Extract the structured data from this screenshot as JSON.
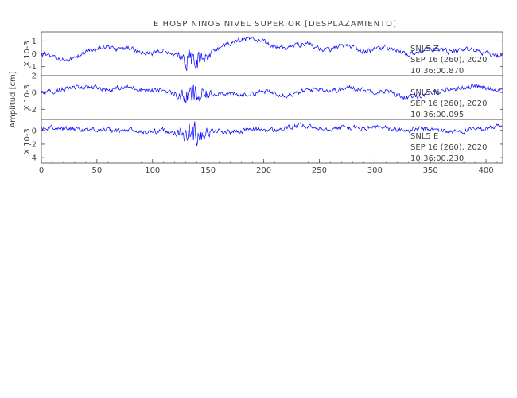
{
  "chart_data": {
    "type": "line",
    "title": "E HOSP NINOS NIVEL SUPERIOR [DESPLAZAMIENTO]",
    "ylabel": "Amplitud [cm]",
    "xlim": [
      0,
      415
    ],
    "x_ticks": [
      "0",
      "50",
      "100",
      "150",
      "200",
      "250",
      "300",
      "350",
      "400"
    ],
    "x_tick_values": [
      0,
      50,
      100,
      150,
      200,
      250,
      300,
      350,
      400
    ],
    "line_color": "#0000ff",
    "axis_color": "#444444",
    "panels": [
      {
        "scale_label": "X 10-3",
        "ylim": [
          -1.7,
          1.7
        ],
        "y_ticks": [
          "1",
          "0",
          "-1"
        ],
        "y_tick_values": [
          1,
          0,
          -1
        ],
        "label_lines": [
          "SNL5   Z",
          "SEP 16 (260), 2020",
          "10:36:00.870"
        ],
        "trace": [
          [
            0,
            0
          ],
          [
            10,
            -0.2
          ],
          [
            20,
            -0.5
          ],
          [
            30,
            -0.4
          ],
          [
            40,
            0.2
          ],
          [
            50,
            0.4
          ],
          [
            60,
            0.6
          ],
          [
            70,
            0.3
          ],
          [
            80,
            0.5
          ],
          [
            90,
            0.1
          ],
          [
            100,
            0
          ],
          [
            110,
            0.2
          ],
          [
            120,
            -0.2
          ],
          [
            130,
            -0.5
          ],
          [
            140,
            -0.3
          ],
          [
            150,
            -0.1
          ],
          [
            160,
            0.5
          ],
          [
            170,
            0.8
          ],
          [
            180,
            1.1
          ],
          [
            190,
            1.2
          ],
          [
            200,
            0.9
          ],
          [
            210,
            0.6
          ],
          [
            220,
            0.4
          ],
          [
            230,
            0.7
          ],
          [
            240,
            0.8
          ],
          [
            250,
            0.4
          ],
          [
            260,
            0.3
          ],
          [
            270,
            0.6
          ],
          [
            280,
            0.5
          ],
          [
            290,
            0.2
          ],
          [
            300,
            0.3
          ],
          [
            310,
            0.5
          ],
          [
            320,
            0.2
          ],
          [
            330,
            -0.1
          ],
          [
            340,
            0.2
          ],
          [
            350,
            0.4
          ],
          [
            360,
            0.3
          ],
          [
            370,
            0.1
          ],
          [
            380,
            0.4
          ],
          [
            390,
            0.3
          ],
          [
            400,
            0
          ],
          [
            410,
            -0.2
          ],
          [
            415,
            -0.1
          ]
        ]
      },
      {
        "scale_label": "X 10-3",
        "ylim": [
          -3.2,
          2.0
        ],
        "y_ticks": [
          "2",
          "0",
          "-2"
        ],
        "y_tick_values": [
          2,
          0,
          -2
        ],
        "label_lines": [
          "SNL5   N",
          "SEP 16 (260), 2020",
          "10:36:00.095"
        ],
        "trace": [
          [
            0,
            0
          ],
          [
            10,
            0.1
          ],
          [
            20,
            0.4
          ],
          [
            30,
            0.6
          ],
          [
            40,
            0.5
          ],
          [
            50,
            0.7
          ],
          [
            60,
            0.3
          ],
          [
            70,
            0.5
          ],
          [
            80,
            0.6
          ],
          [
            90,
            0.4
          ],
          [
            100,
            0.2
          ],
          [
            110,
            0.3
          ],
          [
            120,
            -0.2
          ],
          [
            130,
            -0.6
          ],
          [
            140,
            -0.5
          ],
          [
            150,
            -0.3
          ],
          [
            160,
            0
          ],
          [
            170,
            -0.2
          ],
          [
            180,
            -0.4
          ],
          [
            190,
            -0.1
          ],
          [
            200,
            0.1
          ],
          [
            210,
            0
          ],
          [
            220,
            -0.3
          ],
          [
            230,
            -0.1
          ],
          [
            240,
            0.3
          ],
          [
            250,
            0.5
          ],
          [
            260,
            0.2
          ],
          [
            270,
            0.4
          ],
          [
            280,
            0.6
          ],
          [
            290,
            0.3
          ],
          [
            300,
            0.1
          ],
          [
            310,
            0.2
          ],
          [
            320,
            -0.3
          ],
          [
            330,
            -0.6
          ],
          [
            340,
            -0.4
          ],
          [
            350,
            -0.1
          ],
          [
            360,
            0.2
          ],
          [
            370,
            0.4
          ],
          [
            380,
            0.6
          ],
          [
            390,
            0.8
          ],
          [
            400,
            0.5
          ],
          [
            410,
            0.4
          ],
          [
            415,
            0.3
          ]
        ]
      },
      {
        "scale_label": "X 10-3",
        "ylim": [
          -4.8,
          1.6
        ],
        "y_ticks": [
          "0",
          "-2",
          "-4"
        ],
        "y_tick_values": [
          0,
          -2,
          -4
        ],
        "label_lines": [
          "SNL5   E",
          "SEP 16 (260), 2020",
          "10:36:00.230"
        ],
        "trace": [
          [
            0,
            0.3
          ],
          [
            10,
            0.4
          ],
          [
            20,
            0.2
          ],
          [
            30,
            0.3
          ],
          [
            40,
            0.1
          ],
          [
            50,
            0.2
          ],
          [
            60,
            0
          ],
          [
            70,
            -0.1
          ],
          [
            80,
            0
          ],
          [
            90,
            -0.3
          ],
          [
            100,
            -0.2
          ],
          [
            110,
            0
          ],
          [
            120,
            -0.3
          ],
          [
            130,
            -0.5
          ],
          [
            140,
            -0.4
          ],
          [
            150,
            -0.3
          ],
          [
            160,
            -0.1
          ],
          [
            170,
            -0.2
          ],
          [
            180,
            -0.1
          ],
          [
            190,
            0.2
          ],
          [
            200,
            0.1
          ],
          [
            210,
            0
          ],
          [
            220,
            0.3
          ],
          [
            230,
            0.7
          ],
          [
            240,
            0.5
          ],
          [
            250,
            0.4
          ],
          [
            260,
            0.3
          ],
          [
            270,
            0.5
          ],
          [
            280,
            0.4
          ],
          [
            290,
            0.2
          ],
          [
            300,
            0.5
          ],
          [
            310,
            0.3
          ],
          [
            320,
            0.1
          ],
          [
            330,
            0
          ],
          [
            340,
            0.2
          ],
          [
            350,
            0.1
          ],
          [
            360,
            0
          ],
          [
            370,
            -0.2
          ],
          [
            380,
            -0.1
          ],
          [
            390,
            0.1
          ],
          [
            400,
            0.3
          ],
          [
            410,
            0.5
          ],
          [
            415,
            0.4
          ]
        ]
      }
    ]
  }
}
